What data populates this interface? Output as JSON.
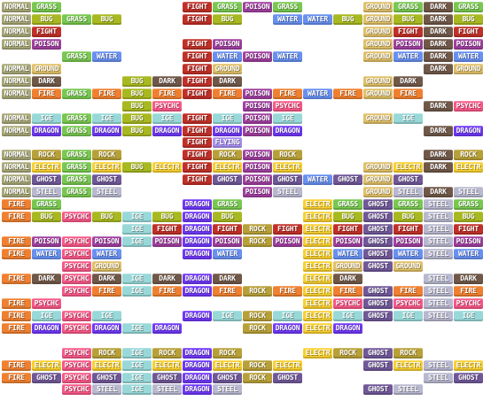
{
  "type_colors": {
    "NORMAL": "#a8a878",
    "GRASS": "#78c850",
    "FIGHT": "#c03028",
    "POISON": "#a040a0",
    "FIRE": "#f08030",
    "WATER": "#6890f0",
    "BUG": "#a8b820",
    "GROUND": "#e0c068",
    "DARK": "#705848",
    "PSYCHC": "#f85888",
    "IGE": "#98d8d8",
    "DRAGON": "#7038f8",
    "ROCK": "#b8a038",
    "ELECTR": "#f8d030",
    "GHOST": "#705898",
    "STEEL": "#b8b8d0",
    "FLYING": "#a890f0"
  },
  "blocks": [
    {
      "col": 0,
      "cells": [
        {
          "row": 0,
          "types": [
            "NORMAL",
            "GRASS"
          ]
        },
        {
          "row": 1,
          "types": [
            "NORMAL",
            "BUG"
          ]
        },
        {
          "row": 2,
          "types": [
            "NORMAL",
            "FIGHT"
          ]
        },
        {
          "row": 3,
          "types": [
            "NORMAL",
            "POISON"
          ]
        },
        {
          "row": 5,
          "types": [
            "NORMAL",
            "GROUND"
          ]
        },
        {
          "row": 6,
          "types": [
            "NORMAL",
            "DARK"
          ]
        },
        {
          "row": 7,
          "types": [
            "NORMAL",
            "FIRE"
          ]
        },
        {
          "row": 9,
          "types": [
            "NORMAL",
            "IGE"
          ]
        },
        {
          "row": 10,
          "types": [
            "NORMAL",
            "DRAGON"
          ]
        },
        {
          "row": 12,
          "types": [
            "NORMAL",
            "ROCK"
          ]
        },
        {
          "row": 13,
          "types": [
            "NORMAL",
            "ELECTR"
          ]
        },
        {
          "row": 14,
          "types": [
            "NORMAL",
            "GHOST"
          ]
        },
        {
          "row": 15,
          "types": [
            "NORMAL",
            "STEEL"
          ]
        },
        {
          "row": 16,
          "types": [
            "FIRE",
            "GRASS"
          ]
        },
        {
          "row": 17,
          "types": [
            "FIRE",
            "BUG"
          ]
        },
        {
          "row": 19,
          "types": [
            "FIRE",
            "POISON"
          ]
        },
        {
          "row": 20,
          "types": [
            "FIRE",
            "WATER"
          ]
        },
        {
          "row": 22,
          "types": [
            "FIRE",
            "DARK"
          ]
        },
        {
          "row": 24,
          "types": [
            "FIRE",
            "PSYCHC"
          ]
        },
        {
          "row": 25,
          "types": [
            "FIRE",
            "IGE"
          ]
        },
        {
          "row": 26,
          "types": [
            "FIRE",
            "DRAGON"
          ]
        },
        {
          "row": 29,
          "types": [
            "FIRE",
            "ELECTR"
          ]
        },
        {
          "row": 30,
          "types": [
            "FIRE",
            "GHOST"
          ]
        }
      ]
    },
    {
      "col": 1,
      "cells": [
        {
          "row": 1,
          "types": [
            "GRASS",
            "BUG"
          ]
        },
        {
          "row": 4,
          "types": [
            "GRASS",
            "WATER"
          ]
        },
        {
          "row": 7,
          "types": [
            "GRASS",
            "FIRE"
          ]
        },
        {
          "row": 9,
          "types": [
            "GRASS",
            "IGE"
          ]
        },
        {
          "row": 10,
          "types": [
            "GRASS",
            "DRAGON"
          ]
        },
        {
          "row": 12,
          "types": [
            "GRASS",
            "ROCK"
          ]
        },
        {
          "row": 13,
          "types": [
            "GRASS",
            "ELECTR"
          ]
        },
        {
          "row": 14,
          "types": [
            "GRASS",
            "GHOST"
          ]
        },
        {
          "row": 15,
          "types": [
            "GRASS",
            "STEEL"
          ]
        },
        {
          "row": 17,
          "types": [
            "PSYCHC",
            "BUG"
          ]
        },
        {
          "row": 19,
          "types": [
            "PSYCHC",
            "POISON"
          ]
        },
        {
          "row": 20,
          "types": [
            "PSYCHC",
            "WATER"
          ]
        },
        {
          "row": 21,
          "types": [
            "PSYCHC",
            "GROUND"
          ]
        },
        {
          "row": 22,
          "types": [
            "PSYCHC",
            "DARK"
          ]
        },
        {
          "row": 23,
          "types": [
            "PSYCHC",
            "FIRE"
          ]
        },
        {
          "row": 25,
          "types": [
            "PSYCHC",
            "IGE"
          ]
        },
        {
          "row": 26,
          "types": [
            "PSYCHC",
            "DRAGON"
          ]
        },
        {
          "row": 28,
          "types": [
            "PSYCHC",
            "ROCK"
          ]
        },
        {
          "row": 29,
          "types": [
            "PSYCHC",
            "ELECTR"
          ]
        },
        {
          "row": 30,
          "types": [
            "PSYCHC",
            "GHOST"
          ]
        },
        {
          "row": 31,
          "types": [
            "PSYCHC",
            "STEEL"
          ]
        }
      ]
    },
    {
      "col": 2,
      "cells": [
        {
          "row": 6,
          "types": [
            "BUG",
            "DARK"
          ]
        },
        {
          "row": 7,
          "types": [
            "BUG",
            "FIRE"
          ]
        },
        {
          "row": 8,
          "types": [
            "BUG",
            "PSYCHC"
          ]
        },
        {
          "row": 9,
          "types": [
            "BUG",
            "IGE"
          ]
        },
        {
          "row": 10,
          "types": [
            "BUG",
            "DRAGON"
          ]
        },
        {
          "row": 13,
          "types": [
            "BUG",
            "ELECTR"
          ]
        },
        {
          "row": 17,
          "types": [
            "IGE",
            "BUG"
          ]
        },
        {
          "row": 18,
          "types": [
            "IGE",
            "FIGHT"
          ]
        },
        {
          "row": 19,
          "types": [
            "IGE",
            "POISON"
          ]
        },
        {
          "row": 22,
          "types": [
            "IGE",
            "DARK"
          ]
        },
        {
          "row": 23,
          "types": [
            "IGE",
            "FIRE"
          ]
        },
        {
          "row": 26,
          "types": [
            "IGE",
            "DRAGON"
          ]
        },
        {
          "row": 28,
          "types": [
            "IGE",
            "ROCK"
          ]
        },
        {
          "row": 29,
          "types": [
            "IGE",
            "ELECTR"
          ]
        },
        {
          "row": 30,
          "types": [
            "IGE",
            "GHOST"
          ]
        },
        {
          "row": 31,
          "types": [
            "IGE",
            "STEEL"
          ]
        }
      ]
    },
    {
      "col": 3,
      "cells": [
        {
          "row": 0,
          "types": [
            "FIGHT",
            "GRASS"
          ]
        },
        {
          "row": 1,
          "types": [
            "FIGHT",
            "BUG"
          ]
        },
        {
          "row": 3,
          "types": [
            "FIGHT",
            "POISON"
          ]
        },
        {
          "row": 4,
          "types": [
            "FIGHT",
            "WATER"
          ]
        },
        {
          "row": 5,
          "types": [
            "FIGHT",
            "GROUND"
          ]
        },
        {
          "row": 6,
          "types": [
            "FIGHT",
            "DARK"
          ]
        },
        {
          "row": 7,
          "types": [
            "FIGHT",
            "FIRE"
          ]
        },
        {
          "row": 9,
          "types": [
            "FIGHT",
            "IGE"
          ]
        },
        {
          "row": 10,
          "types": [
            "FIGHT",
            "DRAGON"
          ]
        },
        {
          "row": 11,
          "types": [
            "FIGHT",
            "FLYING"
          ]
        },
        {
          "row": 12,
          "types": [
            "FIGHT",
            "ROCK"
          ]
        },
        {
          "row": 13,
          "types": [
            "FIGHT",
            "ELECTR"
          ]
        },
        {
          "row": 14,
          "types": [
            "FIGHT",
            "GHOST"
          ]
        },
        {
          "row": 16,
          "types": [
            "DRAGON",
            "GRASS"
          ]
        },
        {
          "row": 17,
          "types": [
            "DRAGON",
            "BUG"
          ]
        },
        {
          "row": 18,
          "types": [
            "DRAGON",
            "FIGHT"
          ]
        },
        {
          "row": 19,
          "types": [
            "DRAGON",
            "POISON"
          ]
        },
        {
          "row": 20,
          "types": [
            "DRAGON",
            "WATER"
          ]
        },
        {
          "row": 22,
          "types": [
            "DRAGON",
            "DARK"
          ]
        },
        {
          "row": 23,
          "types": [
            "DRAGON",
            "FIRE"
          ]
        },
        {
          "row": 25,
          "types": [
            "DRAGON",
            "IGE"
          ]
        },
        {
          "row": 28,
          "types": [
            "DRAGON",
            "ROCK"
          ]
        },
        {
          "row": 29,
          "types": [
            "DRAGON",
            "ELECTR"
          ]
        },
        {
          "row": 30,
          "types": [
            "DRAGON",
            "GHOST"
          ]
        },
        {
          "row": 31,
          "types": [
            "DRAGON",
            "STEEL"
          ]
        }
      ]
    },
    {
      "col": 4,
      "cells": [
        {
          "row": 0,
          "types": [
            "POISON",
            "GRASS"
          ]
        },
        {
          "row": 1,
          "types": [
            "POISON",
            "WATER"
          ],
          "hidden_first": true
        },
        {
          "row": 4,
          "types": [
            "POISON",
            "WATER"
          ]
        },
        {
          "row": 7,
          "types": [
            "POISON",
            "FIRE"
          ]
        },
        {
          "row": 8,
          "types": [
            "POISON",
            "PSYCHC"
          ]
        },
        {
          "row": 9,
          "types": [
            "POISON",
            "IGE"
          ]
        },
        {
          "row": 10,
          "types": [
            "POISON",
            "DRAGON"
          ]
        },
        {
          "row": 12,
          "types": [
            "POISON",
            "ROCK"
          ]
        },
        {
          "row": 13,
          "types": [
            "POISON",
            "ELECTR"
          ]
        },
        {
          "row": 14,
          "types": [
            "POISON",
            "GHOST"
          ]
        },
        {
          "row": 15,
          "types": [
            "POISON",
            "STEEL"
          ]
        },
        {
          "row": 18,
          "types": [
            "ROCK",
            "FIGHT"
          ]
        },
        {
          "row": 19,
          "types": [
            "ROCK",
            "POISON"
          ]
        },
        {
          "row": 20,
          "types": [
            "ROCK",
            "WATER"
          ],
          "hidden": true
        },
        {
          "row": 23,
          "types": [
            "ROCK",
            "FIRE"
          ]
        },
        {
          "row": 25,
          "types": [
            "ROCK",
            "IGE"
          ]
        },
        {
          "row": 26,
          "types": [
            "ROCK",
            "DRAGON"
          ]
        },
        {
          "row": 29,
          "types": [
            "ROCK",
            "ELECTR"
          ]
        },
        {
          "row": 30,
          "types": [
            "ROCK",
            "GHOST"
          ]
        }
      ]
    },
    {
      "col": 5,
      "cells": [
        {
          "row": 1,
          "types": [
            "WATER",
            "BUG"
          ]
        },
        {
          "row": 7,
          "types": [
            "WATER",
            "FIRE"
          ]
        },
        {
          "row": 14,
          "types": [
            "WATER",
            "GHOST"
          ]
        },
        {
          "row": 16,
          "types": [
            "ELECTR",
            "GRASS"
          ]
        },
        {
          "row": 17,
          "types": [
            "ELECTR",
            "BUG"
          ]
        },
        {
          "row": 18,
          "types": [
            "ELECTR",
            "FIGHT"
          ]
        },
        {
          "row": 19,
          "types": [
            "ELECTR",
            "POISON"
          ]
        },
        {
          "row": 20,
          "types": [
            "ELECTR",
            "WATER"
          ]
        },
        {
          "row": 21,
          "types": [
            "ELECTR",
            "GROUND"
          ]
        },
        {
          "row": 22,
          "types": [
            "ELECTR",
            "DARK"
          ]
        },
        {
          "row": 23,
          "types": [
            "ELECTR",
            "FIRE"
          ]
        },
        {
          "row": 24,
          "types": [
            "ELECTR",
            "PSYCHC"
          ]
        },
        {
          "row": 25,
          "types": [
            "ELECTR",
            "IGE"
          ]
        },
        {
          "row": 26,
          "types": [
            "ELECTR",
            "DRAGON"
          ]
        },
        {
          "row": 28,
          "types": [
            "ELECTR",
            "ROCK"
          ]
        }
      ]
    },
    {
      "col": 6,
      "cells": [
        {
          "row": 0,
          "types": [
            "GROUND",
            "GRASS"
          ]
        },
        {
          "row": 1,
          "types": [
            "GROUND",
            "BUG"
          ]
        },
        {
          "row": 2,
          "types": [
            "GROUND",
            "FIGHT"
          ]
        },
        {
          "row": 3,
          "types": [
            "GROUND",
            "POISON"
          ]
        },
        {
          "row": 4,
          "types": [
            "GROUND",
            "WATER"
          ]
        },
        {
          "row": 6,
          "types": [
            "GROUND",
            "DARK"
          ]
        },
        {
          "row": 7,
          "types": [
            "GROUND",
            "FIRE"
          ]
        },
        {
          "row": 9,
          "types": [
            "GROUND",
            "IGE"
          ]
        },
        {
          "row": 13,
          "types": [
            "GROUND",
            "ELECTR"
          ]
        },
        {
          "row": 14,
          "types": [
            "GROUND",
            "GHOST"
          ]
        },
        {
          "row": 15,
          "types": [
            "GROUND",
            "STEEL"
          ]
        },
        {
          "row": 16,
          "types": [
            "GHOST",
            "GRASS"
          ]
        },
        {
          "row": 17,
          "types": [
            "GHOST",
            "BUG"
          ]
        },
        {
          "row": 18,
          "types": [
            "GHOST",
            "FIGHT"
          ]
        },
        {
          "row": 19,
          "types": [
            "GHOST",
            "POISON"
          ]
        },
        {
          "row": 20,
          "types": [
            "GHOST",
            "WATER"
          ]
        },
        {
          "row": 21,
          "types": [
            "GHOST",
            "GROUND"
          ]
        },
        {
          "row": 23,
          "types": [
            "GHOST",
            "FIRE"
          ]
        },
        {
          "row": 24,
          "types": [
            "GHOST",
            "PSYCHC"
          ]
        },
        {
          "row": 25,
          "types": [
            "GHOST",
            "IGE"
          ]
        },
        {
          "row": 28,
          "types": [
            "GHOST",
            "ROCK"
          ]
        },
        {
          "row": 29,
          "types": [
            "GHOST",
            "ELECTR"
          ]
        },
        {
          "row": 31,
          "types": [
            "GHOST",
            "STEEL"
          ]
        }
      ]
    },
    {
      "col": 7,
      "cells": [
        {
          "row": 0,
          "types": [
            "DARK",
            "GRASS"
          ]
        },
        {
          "row": 1,
          "types": [
            "DARK",
            "BUG"
          ]
        },
        {
          "row": 2,
          "types": [
            "DARK",
            "FIGHT"
          ]
        },
        {
          "row": 3,
          "types": [
            "DARK",
            "POISON"
          ]
        },
        {
          "row": 4,
          "types": [
            "DARK",
            "WATER"
          ]
        },
        {
          "row": 5,
          "types": [
            "DARK",
            "GROUND"
          ]
        },
        {
          "row": 8,
          "types": [
            "DARK",
            "PSYCHC"
          ]
        },
        {
          "row": 10,
          "types": [
            "DARK",
            "DRAGON"
          ]
        },
        {
          "row": 12,
          "types": [
            "DARK",
            "ROCK"
          ]
        },
        {
          "row": 13,
          "types": [
            "DARK",
            "ELECTR"
          ]
        },
        {
          "row": 15,
          "types": [
            "DARK",
            "STEEL"
          ]
        },
        {
          "row": 16,
          "types": [
            "STEEL",
            "GRASS"
          ]
        },
        {
          "row": 17,
          "types": [
            "STEEL",
            "BUG"
          ]
        },
        {
          "row": 18,
          "types": [
            "STEEL",
            "FIGHT"
          ]
        },
        {
          "row": 19,
          "types": [
            "STEEL",
            "POISON"
          ]
        },
        {
          "row": 20,
          "types": [
            "STEEL",
            "WATER"
          ]
        },
        {
          "row": 22,
          "types": [
            "STEEL",
            "DARK"
          ]
        },
        {
          "row": 23,
          "types": [
            "STEEL",
            "FIRE"
          ]
        },
        {
          "row": 24,
          "types": [
            "STEEL",
            "PSYCHC"
          ]
        },
        {
          "row": 25,
          "types": [
            "STEEL",
            "IGE"
          ]
        },
        {
          "row": 29,
          "types": [
            "STEEL",
            "ELECTR"
          ]
        },
        {
          "row": 30,
          "types": [
            "STEEL",
            "GHOST"
          ]
        }
      ]
    }
  ]
}
